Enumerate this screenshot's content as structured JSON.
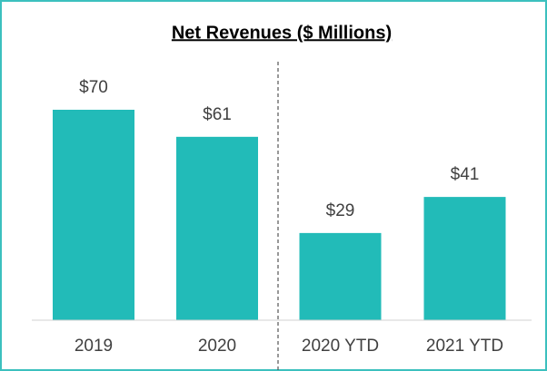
{
  "chart_data": {
    "type": "bar",
    "title": "Net Revenues ($ Millions)",
    "categories": [
      "2019",
      "2020",
      "2020 YTD",
      "2021 YTD"
    ],
    "values": [
      70,
      61,
      29,
      41
    ],
    "value_labels": [
      "$70",
      "$61",
      "$29",
      "$41"
    ],
    "color": "#22bbb8"
  }
}
